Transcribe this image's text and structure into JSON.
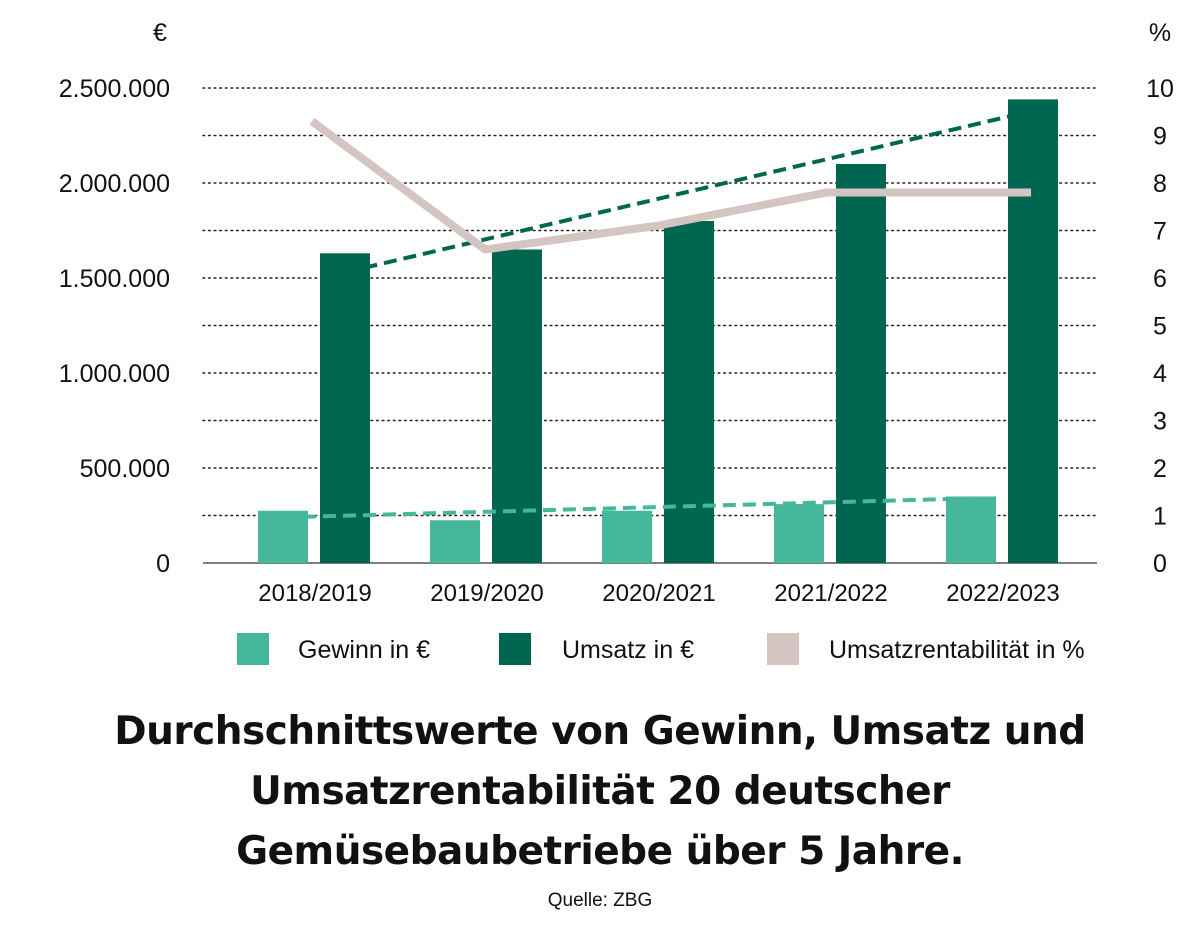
{
  "chart_data": {
    "type": "bar",
    "categories": [
      "2018/2019",
      "2019/2020",
      "2020/2021",
      "2021/2022",
      "2022/2023"
    ],
    "series": [
      {
        "name": "Gewinn in €",
        "type": "bar",
        "axis": "left",
        "color": "#45b79b",
        "values": [
          275000,
          225000,
          275000,
          310000,
          350000
        ]
      },
      {
        "name": "Umsatz in €",
        "type": "bar",
        "axis": "left",
        "color": "#006650",
        "values": [
          1630000,
          1650000,
          1800000,
          2100000,
          2440000
        ]
      },
      {
        "name": "Umsatzrentabilität in %",
        "type": "line",
        "axis": "right",
        "color": "#d4c5c3",
        "values": [
          9.3,
          6.6,
          7.1,
          7.8,
          7.8
        ]
      }
    ],
    "trendlines": [
      {
        "of": "Umsatz in €",
        "style": "dashed",
        "color": "#006650",
        "values": [
          1530000,
          2380000
        ]
      },
      {
        "of": "Gewinn in €",
        "style": "dashed",
        "color": "#45b79b",
        "values": [
          240000,
          340000
        ]
      }
    ],
    "y_left": {
      "unit": "€",
      "ylim": [
        0,
        2500000
      ],
      "ticks": [
        0,
        500000,
        1000000,
        1500000,
        2000000,
        2500000
      ],
      "tick_labels": [
        "0",
        "500.000",
        "1.000.000",
        "1.500.000",
        "2.000.000",
        "2.500.000"
      ]
    },
    "y_right": {
      "unit": "%",
      "ylim": [
        0,
        10
      ],
      "ticks": [
        0,
        1,
        2,
        3,
        4,
        5,
        6,
        7,
        8,
        9,
        10
      ],
      "tick_labels": [
        "0",
        "1",
        "2",
        "3",
        "4",
        "5",
        "6",
        "7",
        "8",
        "9",
        "10"
      ]
    },
    "grid": "dotted horizontal",
    "legend_position": "bottom",
    "title": [
      "Durchschnittswerte von Gewinn, Umsatz und",
      "Umsatzrentabilität 20 deutscher",
      "Gemüsebaubetriebe über 5 Jahre."
    ],
    "source": "Quelle: ZBG"
  }
}
